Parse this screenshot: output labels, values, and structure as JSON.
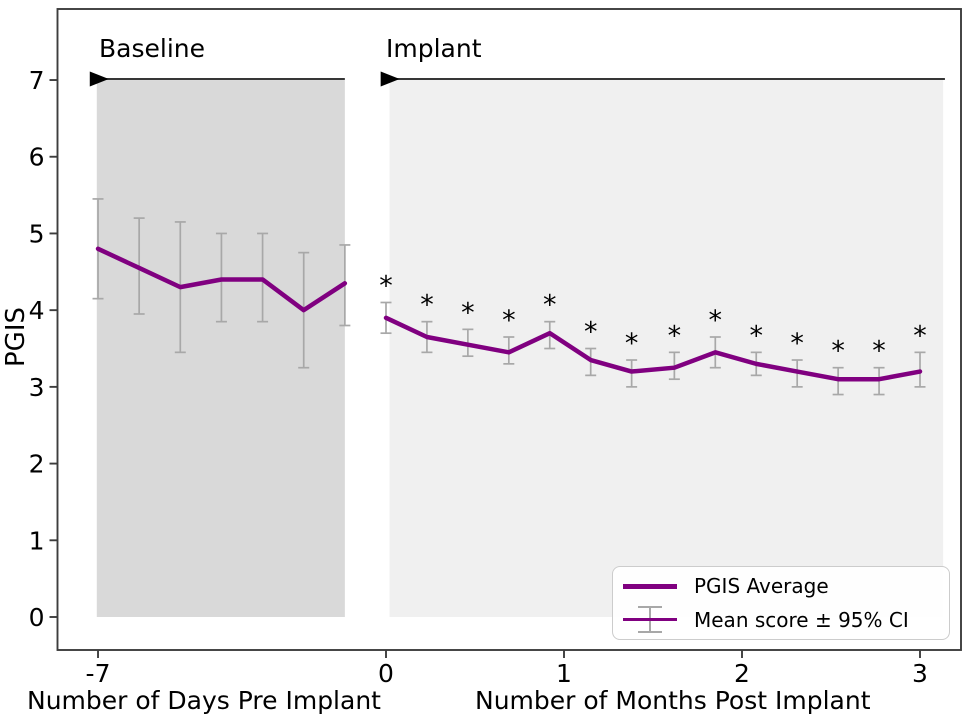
{
  "chart_data": {
    "type": "line",
    "title": "",
    "ylabel": "PGIS",
    "xlabel_pre": "Number of Days Pre Implant",
    "xlabel_post": "Number of Months Post Implant",
    "ylim": [
      0,
      7
    ],
    "y_ticks": [
      0,
      1,
      2,
      3,
      4,
      5,
      6,
      7
    ],
    "x_ticks_pre_days": [
      -7
    ],
    "x_ticks_post_months": [
      0,
      1,
      2,
      3
    ],
    "grid": false,
    "legend_position": "lower right",
    "sig_marker": "*",
    "annotations": {
      "baseline_label": "Baseline",
      "implant_label": "Implant",
      "baseline_arrow": {
        "y": 7,
        "from_day": -7.2,
        "to_day": -1.0
      },
      "implant_arrow": {
        "y": 7,
        "from_month": -0.03,
        "to_month": 3.14
      }
    },
    "regions": [
      {
        "name": "baseline-span",
        "unit": "days",
        "x_start": -7.03,
        "x_end": -1.0,
        "y_start": 0,
        "y_end": 7,
        "color": "#d9d9d9"
      },
      {
        "name": "implant-span",
        "unit": "months",
        "x_start": 0.02,
        "x_end": 3.13,
        "y_start": 0,
        "y_end": 7,
        "color": "#f0f0f0"
      }
    ],
    "series": [
      {
        "name": "baseline-days-pre-implant",
        "unit": "days",
        "x": [
          -7,
          -6,
          -5,
          -4,
          -3,
          -2,
          -1
        ],
        "mean": [
          4.8,
          4.55,
          4.3,
          4.4,
          4.4,
          4.0,
          4.35
        ],
        "ci_low": [
          4.15,
          3.95,
          3.45,
          3.85,
          3.85,
          3.25,
          3.8
        ],
        "ci_high": [
          5.45,
          5.2,
          5.15,
          5.0,
          5.0,
          4.75,
          4.85
        ],
        "sig": [
          "",
          "",
          "",
          "",
          "",
          "",
          ""
        ]
      },
      {
        "name": "post-implant-months",
        "unit": "months",
        "x": [
          0,
          0.23,
          0.46,
          0.69,
          0.92,
          1.15,
          1.38,
          1.62,
          1.85,
          2.08,
          2.31,
          2.54,
          2.77,
          3.0
        ],
        "mean": [
          3.9,
          3.65,
          3.55,
          3.45,
          3.7,
          3.35,
          3.2,
          3.25,
          3.45,
          3.3,
          3.2,
          3.1,
          3.1,
          3.2
        ],
        "ci_low": [
          3.7,
          3.45,
          3.4,
          3.3,
          3.5,
          3.15,
          3.0,
          3.1,
          3.25,
          3.15,
          3.0,
          2.9,
          2.9,
          3.0
        ],
        "ci_high": [
          4.1,
          3.85,
          3.75,
          3.65,
          3.85,
          3.5,
          3.35,
          3.45,
          3.65,
          3.45,
          3.35,
          3.25,
          3.25,
          3.45
        ],
        "sig": [
          "*",
          "*",
          "*",
          "*",
          "*",
          "*",
          "*",
          "*",
          "*",
          "*",
          "*",
          "*",
          "*",
          "*"
        ]
      }
    ],
    "legend": {
      "entries": [
        {
          "label": "PGIS Average"
        },
        {
          "label": "Mean score ± 95% CI"
        }
      ]
    },
    "colors": {
      "line": "#800080",
      "error_bar": "#a8a8a8",
      "baseline_region": "#d9d9d9",
      "implant_region": "#f0f0f0",
      "spine": "#3d3d3d",
      "text": "#000000"
    }
  }
}
